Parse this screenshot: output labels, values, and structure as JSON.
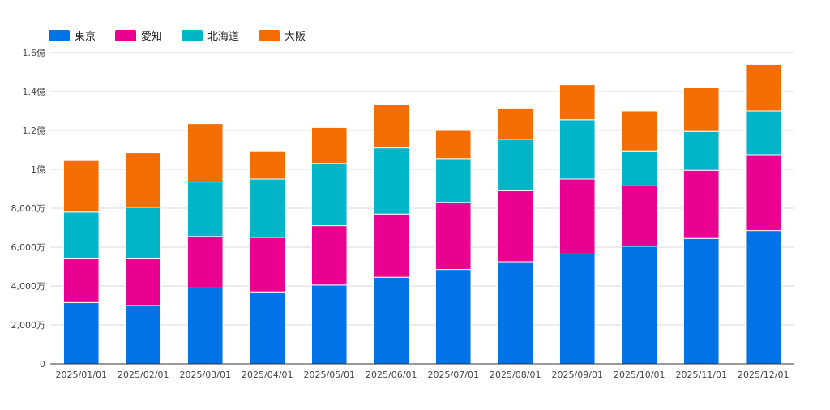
{
  "chart_data": {
    "type": "bar",
    "stacked": true,
    "categories": [
      "2025/01/01",
      "2025/02/01",
      "2025/03/01",
      "2025/04/01",
      "2025/05/01",
      "2025/06/01",
      "2025/07/01",
      "2025/08/01",
      "2025/09/01",
      "2025/10/01",
      "2025/11/01",
      "2025/12/01"
    ],
    "series": [
      {
        "name": "東京",
        "color": "#0073e6",
        "values": [
          31500000,
          30000000,
          39000000,
          37000000,
          40500000,
          44500000,
          48500000,
          52500000,
          56500000,
          60500000,
          64500000,
          68500000
        ]
      },
      {
        "name": "愛知",
        "color": "#ea0090",
        "values": [
          22500000,
          24000000,
          26500000,
          28000000,
          30500000,
          32500000,
          34500000,
          36500000,
          38500000,
          31000000,
          35000000,
          39000000
        ]
      },
      {
        "name": "北海道",
        "color": "#00b5c8",
        "values": [
          24000000,
          26500000,
          28000000,
          30000000,
          32000000,
          34000000,
          22500000,
          26500000,
          30500000,
          18000000,
          20000000,
          22500000
        ]
      },
      {
        "name": "大阪",
        "color": "#f46d00",
        "values": [
          26500000,
          28000000,
          30000000,
          14500000,
          18500000,
          22500000,
          14500000,
          16000000,
          18000000,
          20500000,
          22500000,
          24000000
        ]
      }
    ],
    "ylim": [
      0,
      160000000
    ],
    "yticks": [
      {
        "value": 0,
        "label": "0"
      },
      {
        "value": 20000000,
        "label": "2,000万"
      },
      {
        "value": 40000000,
        "label": "4,000万"
      },
      {
        "value": 60000000,
        "label": "6,000万"
      },
      {
        "value": 80000000,
        "label": "8,000万"
      },
      {
        "value": 100000000,
        "label": "1億"
      },
      {
        "value": 120000000,
        "label": "1.2億"
      },
      {
        "value": 140000000,
        "label": "1.4億"
      },
      {
        "value": 160000000,
        "label": "1.6億"
      }
    ],
    "grid": true,
    "legend_position": "top-left"
  }
}
